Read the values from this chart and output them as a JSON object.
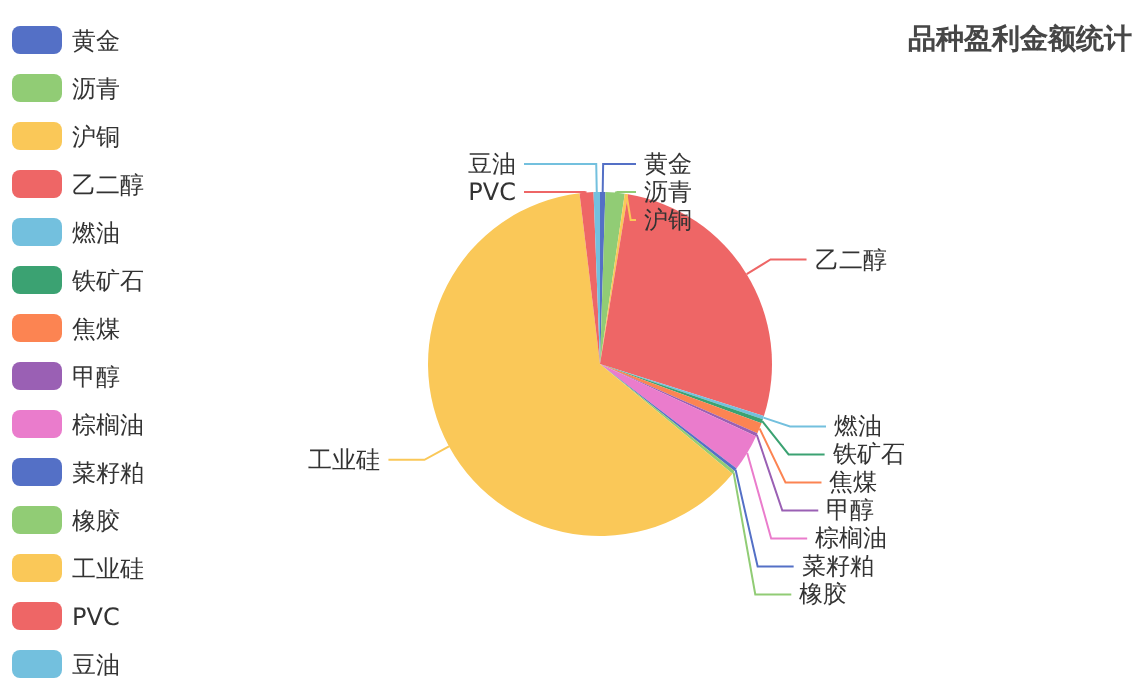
{
  "chart_data": {
    "type": "pie",
    "title": "品种盈利金额统计",
    "categories": [
      "黄金",
      "沥青",
      "沪铜",
      "乙二醇",
      "燃油",
      "铁矿石",
      "焦煤",
      "甲醇",
      "棕榈油",
      "菜籽粕",
      "橡胶",
      "工业硅",
      "PVC",
      "豆油"
    ],
    "values": [
      0.5,
      1.8,
      0.3,
      27.3,
      0.3,
      0.4,
      1.0,
      0.3,
      3.5,
      0.3,
      0.3,
      62.1,
      1.3,
      0.6
    ],
    "colors": [
      "#5470c6",
      "#91cc75",
      "#fac858",
      "#ee6666",
      "#73c0de",
      "#3ba272",
      "#fc8452",
      "#9a60b4",
      "#ea7ccc",
      "#5470c6",
      "#91cc75",
      "#fac858",
      "#ee6666",
      "#73c0de"
    ],
    "legend": "left"
  }
}
